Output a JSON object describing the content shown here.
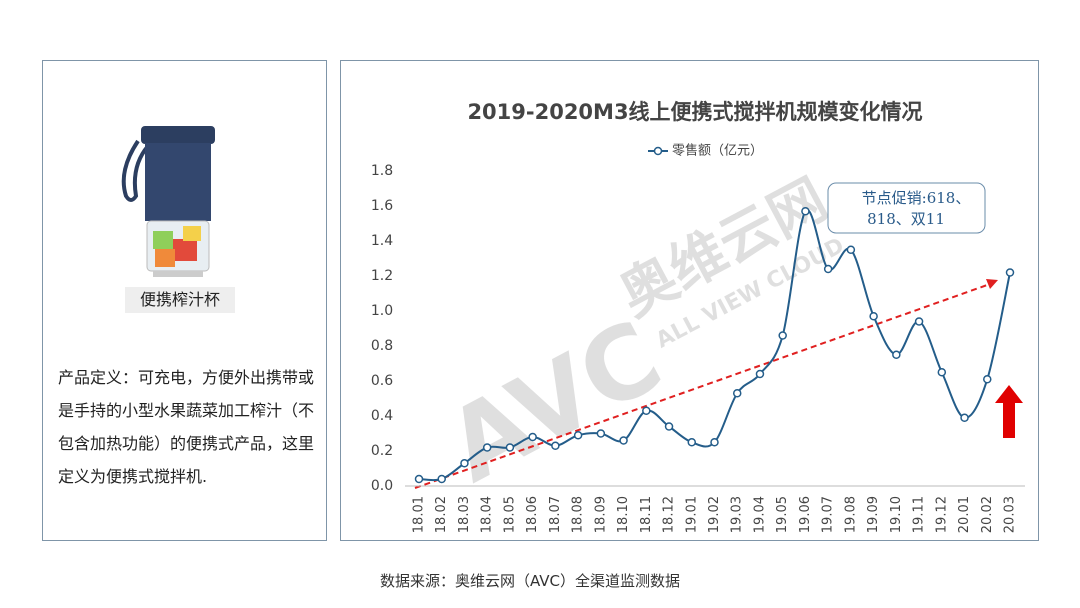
{
  "panel": {
    "product": "便携榨汁杯",
    "definition": "产品定义：可充电，方便外出携带或是手持的小型水果蔬菜加工榨汁（不包含加热功能）的便携式产品，这里定义为便携式搅拌机."
  },
  "chart_data": {
    "type": "line",
    "title": "2019-2020M3线上便携式搅拌机规模变化情况",
    "categories": [
      "18.01",
      "18.02",
      "18.03",
      "18.04",
      "18.05",
      "18.06",
      "18.07",
      "18.08",
      "18.09",
      "18.10",
      "18.11",
      "18.12",
      "19.01",
      "19.02",
      "19.03",
      "19.04",
      "19.05",
      "19.06",
      "19.07",
      "19.08",
      "19.09",
      "19.10",
      "19.11",
      "19.12",
      "20.01",
      "20.02",
      "20.03"
    ],
    "series": [
      {
        "name": "零售额（亿元）",
        "color": "#245d8a",
        "values": [
          0.04,
          0.04,
          0.13,
          0.22,
          0.22,
          0.28,
          0.23,
          0.29,
          0.3,
          0.26,
          0.43,
          0.34,
          0.25,
          0.25,
          0.53,
          0.64,
          0.86,
          1.57,
          1.24,
          1.35,
          0.97,
          0.75,
          0.94,
          0.65,
          0.39,
          0.61,
          1.22
        ]
      }
    ],
    "ylim": [
      0,
      1.8
    ],
    "yticks": [
      {
        "value": 0,
        "label": "0.0"
      },
      0.2,
      0.4,
      0.6,
      0.8,
      {
        "value": 1,
        "label": "1.0"
      },
      1.2,
      1.4,
      1.6,
      1.8
    ],
    "annotation": [
      "节点促销:618、",
      "818、双11"
    ],
    "watermark": {
      "logo": "AVC",
      "cn": "奥维云网",
      "en": "ALL VIEW CLOUD"
    }
  },
  "source": "数据来源：奥维云网（AVC）全渠道监测数据"
}
